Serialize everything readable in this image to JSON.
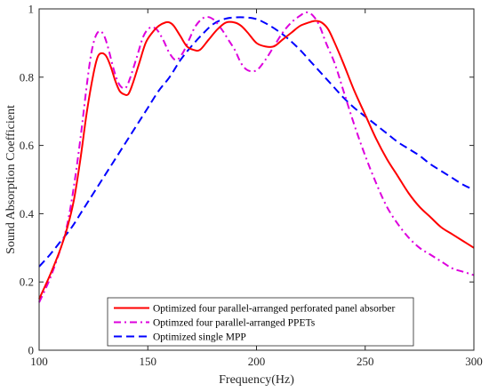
{
  "chart_data": {
    "type": "line",
    "xlabel": "Frequency(Hz)",
    "ylabel": "Sound Absorption Coefficient",
    "xlim": [
      100,
      300
    ],
    "ylim": [
      0,
      1
    ],
    "xticks": [
      100,
      150,
      200,
      250,
      300
    ],
    "yticks": [
      0,
      0.2,
      0.4,
      0.6,
      0.8,
      1
    ],
    "xtick_labels": [
      "100",
      "150",
      "200",
      "250",
      "300"
    ],
    "ytick_labels": [
      "0",
      "0.2",
      "0.4",
      "0.6",
      "0.8",
      "1"
    ],
    "grid": false,
    "legend_position": "bottom-left",
    "series": [
      {
        "name": "Optimized four parallel-arranged perforated panel absorber",
        "color": "#ff0000",
        "dash": "solid",
        "x": [
          100,
          105,
          110,
          113,
          116,
          119,
          122,
          125,
          127,
          129,
          131,
          133,
          135,
          137,
          139,
          141,
          143,
          146,
          149,
          152,
          155,
          158,
          160,
          162,
          165,
          168,
          171,
          174,
          178,
          182,
          186,
          190,
          193,
          196,
          200,
          204,
          208,
          212,
          216,
          220,
          224,
          227,
          230,
          233,
          236,
          240,
          245,
          250,
          255,
          260,
          265,
          270,
          275,
          280,
          285,
          290,
          295,
          300
        ],
        "y": [
          0.15,
          0.22,
          0.3,
          0.36,
          0.44,
          0.56,
          0.7,
          0.81,
          0.86,
          0.87,
          0.86,
          0.83,
          0.79,
          0.76,
          0.75,
          0.75,
          0.78,
          0.84,
          0.9,
          0.93,
          0.95,
          0.96,
          0.96,
          0.95,
          0.92,
          0.89,
          0.88,
          0.88,
          0.91,
          0.94,
          0.96,
          0.96,
          0.95,
          0.93,
          0.9,
          0.89,
          0.89,
          0.91,
          0.93,
          0.95,
          0.96,
          0.965,
          0.96,
          0.94,
          0.9,
          0.84,
          0.76,
          0.69,
          0.62,
          0.56,
          0.51,
          0.46,
          0.42,
          0.39,
          0.36,
          0.34,
          0.32,
          0.3
        ]
      },
      {
        "name": "Optimzed four parallel-arranged PPETs",
        "color": "#dd00dd",
        "dash": "dashdot",
        "x": [
          100,
          105,
          110,
          113,
          116,
          119,
          122,
          124,
          126,
          128,
          130,
          132,
          134,
          136,
          138,
          140,
          142,
          145,
          148,
          151,
          154,
          157,
          160,
          163,
          166,
          169,
          172,
          176,
          180,
          184,
          187,
          190,
          193,
          196,
          200,
          204,
          208,
          212,
          216,
          220,
          223,
          226,
          229,
          232,
          236,
          240,
          245,
          250,
          255,
          260,
          265,
          270,
          275,
          280,
          285,
          290,
          295,
          300
        ],
        "y": [
          0.14,
          0.21,
          0.3,
          0.37,
          0.48,
          0.62,
          0.78,
          0.87,
          0.92,
          0.935,
          0.92,
          0.88,
          0.83,
          0.79,
          0.77,
          0.77,
          0.8,
          0.86,
          0.92,
          0.945,
          0.94,
          0.91,
          0.87,
          0.85,
          0.87,
          0.91,
          0.95,
          0.975,
          0.97,
          0.94,
          0.91,
          0.88,
          0.84,
          0.82,
          0.82,
          0.85,
          0.89,
          0.93,
          0.96,
          0.98,
          0.99,
          0.98,
          0.95,
          0.9,
          0.84,
          0.76,
          0.66,
          0.57,
          0.49,
          0.42,
          0.37,
          0.33,
          0.3,
          0.28,
          0.26,
          0.24,
          0.23,
          0.22
        ]
      },
      {
        "name": "Optimized single MPP",
        "color": "#0000ff",
        "dash": "dashed",
        "x": [
          100,
          105,
          110,
          115,
          120,
          125,
          130,
          135,
          140,
          145,
          150,
          155,
          160,
          165,
          170,
          175,
          180,
          185,
          190,
          195,
          200,
          205,
          210,
          215,
          220,
          225,
          230,
          235,
          240,
          245,
          250,
          255,
          260,
          265,
          270,
          275,
          280,
          285,
          290,
          295,
          300
        ],
        "y": [
          0.245,
          0.28,
          0.32,
          0.36,
          0.41,
          0.46,
          0.51,
          0.56,
          0.61,
          0.66,
          0.71,
          0.76,
          0.8,
          0.85,
          0.89,
          0.925,
          0.955,
          0.97,
          0.975,
          0.975,
          0.97,
          0.955,
          0.935,
          0.91,
          0.88,
          0.845,
          0.81,
          0.775,
          0.74,
          0.71,
          0.685,
          0.66,
          0.635,
          0.61,
          0.59,
          0.57,
          0.545,
          0.525,
          0.505,
          0.485,
          0.47
        ]
      }
    ]
  }
}
